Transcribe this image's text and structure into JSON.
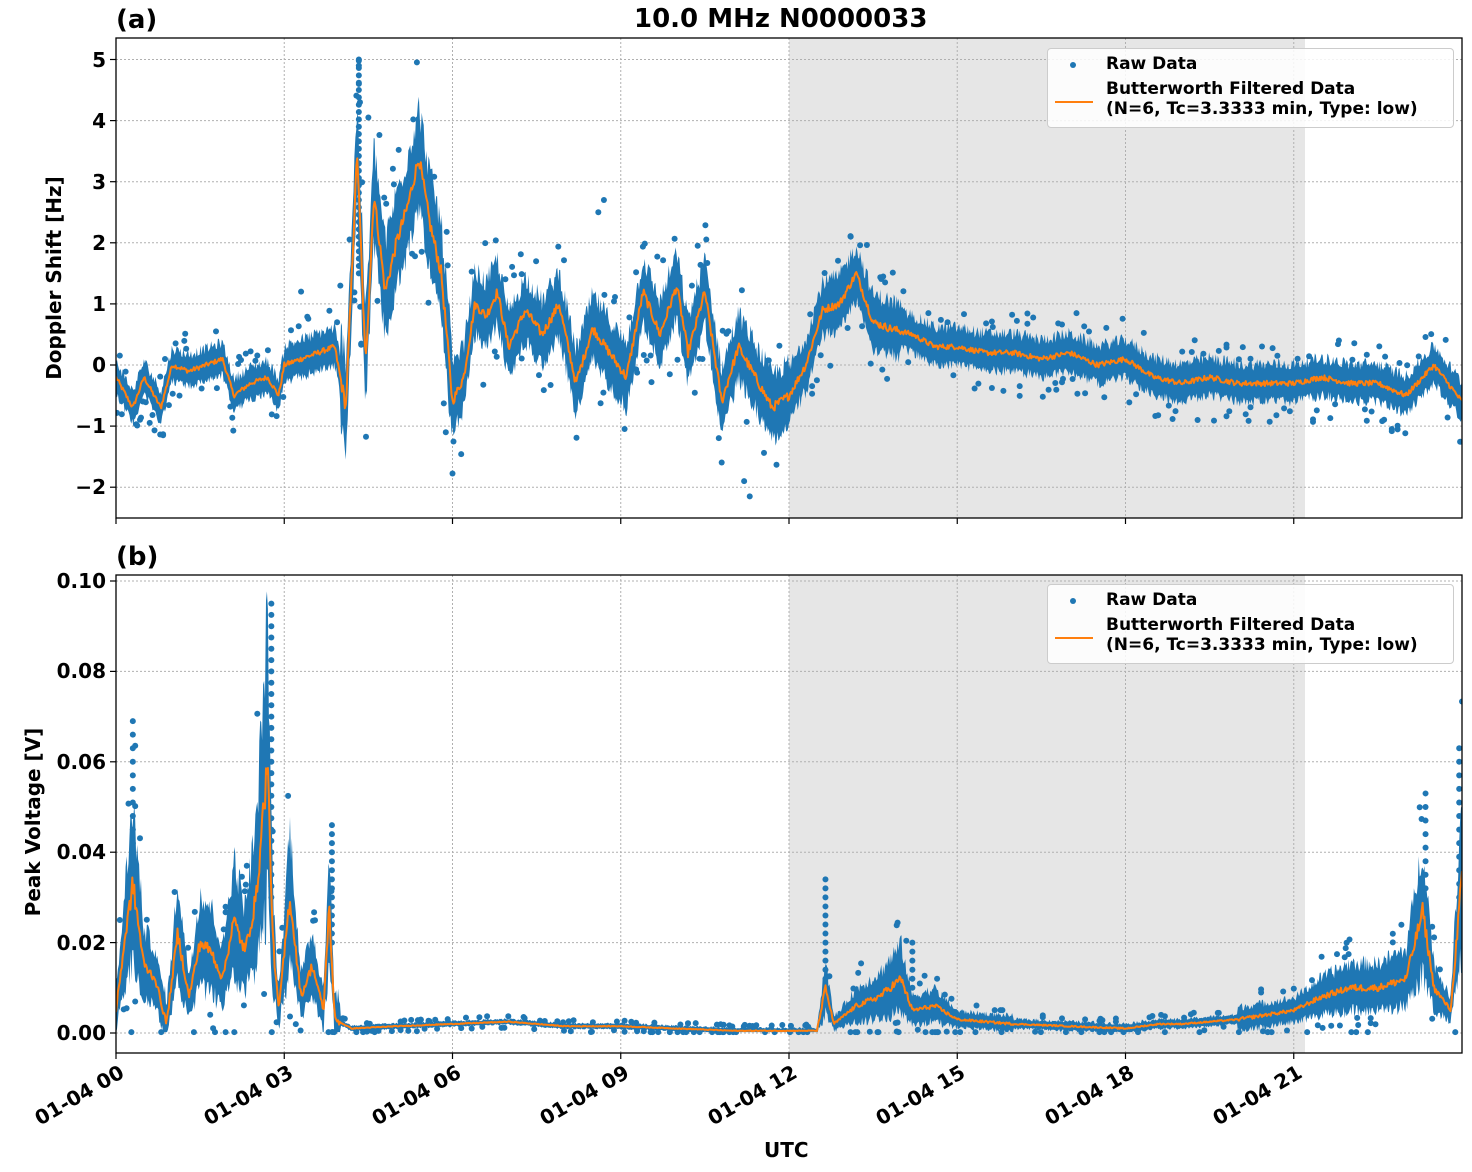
{
  "figure": {
    "title": "10.0 MHz N0000033",
    "xlabel": "UTC",
    "x_tick_labels": [
      "01-04 00",
      "01-04 03",
      "01-04 06",
      "01-04 09",
      "01-04 12",
      "01-04 15",
      "01-04 18",
      "01-04 21"
    ],
    "colors": {
      "raw": "#1f77b4",
      "filtered": "#ff7f0e",
      "shade": "#e6e6e6",
      "grid": "#b0b0b0"
    }
  },
  "panels": {
    "a": {
      "label": "(a)",
      "ylabel": "Doppler Shift [Hz]",
      "y_tick_labels": [
        "5",
        "4",
        "3",
        "2",
        "1",
        "0",
        "−1",
        "−2"
      ],
      "legend": {
        "raw": "Raw Data",
        "filtered_line1": "Butterworth Filtered Data",
        "filtered_line2": "(N=6, Tc=3.3333 min, Type: low)"
      }
    },
    "b": {
      "label": "(b)",
      "ylabel": "Peak Voltage [V]",
      "y_tick_labels": [
        "0.10",
        "0.08",
        "0.06",
        "0.04",
        "0.02",
        "0.00"
      ],
      "legend": {
        "raw": "Raw Data",
        "filtered_line1": "Butterworth Filtered Data",
        "filtered_line2": "(N=6, Tc=3.3333 min, Type: low)"
      }
    }
  },
  "chart_data": [
    {
      "type": "line",
      "title": "10.0 MHz N0000033",
      "panel": "(a)",
      "xlabel": "",
      "ylabel": "Doppler Shift [Hz]",
      "xlim_hours_utc": [
        0,
        24
      ],
      "ylim": [
        -2.5,
        5.35
      ],
      "yticks": [
        -2,
        -1,
        0,
        1,
        2,
        3,
        4,
        5
      ],
      "grid": true,
      "legend_position": "upper right",
      "shaded_region_hours": [
        12.0,
        21.2
      ],
      "series": [
        {
          "name": "Butterworth Filtered Data (N=6, Tc=3.3333 min, Type: low)",
          "style": "line",
          "x_hours": [
            0,
            0.3,
            0.5,
            0.8,
            1.0,
            1.3,
            1.6,
            1.9,
            2.1,
            2.4,
            2.7,
            2.9,
            3.0,
            3.3,
            3.6,
            3.9,
            4.1,
            4.3,
            4.45,
            4.6,
            4.8,
            5.0,
            5.2,
            5.4,
            5.6,
            5.8,
            6.0,
            6.2,
            6.4,
            6.6,
            6.8,
            7.0,
            7.3,
            7.6,
            7.9,
            8.2,
            8.5,
            8.8,
            9.1,
            9.4,
            9.7,
            10.0,
            10.2,
            10.5,
            10.8,
            11.1,
            11.4,
            11.7,
            12.0,
            12.3,
            12.6,
            12.9,
            13.2,
            13.5,
            13.8,
            14.2,
            14.6,
            15.0,
            15.5,
            16.0,
            16.5,
            17.0,
            17.5,
            18.0,
            18.5,
            19.0,
            19.5,
            20.0,
            20.5,
            21.0,
            21.5,
            22.0,
            22.5,
            23.0,
            23.5,
            24.0
          ],
          "values": [
            -0.2,
            -0.7,
            -0.2,
            -0.7,
            0.0,
            -0.1,
            0.0,
            0.1,
            -0.5,
            -0.3,
            -0.2,
            -0.5,
            0.0,
            0.1,
            0.2,
            0.3,
            -0.7,
            3.5,
            0.0,
            2.8,
            1.2,
            2.0,
            2.6,
            3.4,
            2.3,
            1.5,
            -0.6,
            -0.2,
            1.0,
            0.8,
            1.2,
            0.3,
            0.9,
            0.5,
            1.0,
            -0.3,
            0.6,
            0.2,
            -0.2,
            1.2,
            0.5,
            1.3,
            0.2,
            1.2,
            -0.6,
            0.3,
            -0.2,
            -0.7,
            -0.5,
            0.0,
            0.9,
            1.0,
            1.5,
            0.7,
            0.6,
            0.5,
            0.3,
            0.3,
            0.2,
            0.2,
            0.1,
            0.2,
            0.0,
            0.1,
            -0.2,
            -0.3,
            -0.2,
            -0.3,
            -0.3,
            -0.3,
            -0.2,
            -0.3,
            -0.3,
            -0.5,
            0.0,
            -0.6
          ]
        },
        {
          "name": "Raw Data",
          "style": "scatter",
          "description": "Dense scatter around filtered line; spread roughly ±0.5 Hz, larger during 04-11 UTC; maximum ~5.0 Hz near 04:20 UTC; minimum ~-2.15 Hz near 11:25 UTC"
        }
      ]
    },
    {
      "type": "line",
      "panel": "(b)",
      "xlabel": "UTC",
      "ylabel": "Peak Voltage [V]",
      "xlim_hours_utc": [
        0,
        24
      ],
      "ylim": [
        -0.004,
        0.1015
      ],
      "yticks": [
        0.0,
        0.02,
        0.04,
        0.06,
        0.08,
        0.1
      ],
      "grid": true,
      "legend_position": "upper right",
      "shaded_region_hours": [
        12.0,
        21.2
      ],
      "x_tick_labels": [
        "01-04 00",
        "01-04 03",
        "01-04 06",
        "01-04 09",
        "01-04 12",
        "01-04 15",
        "01-04 18",
        "01-04 21"
      ],
      "series": [
        {
          "name": "Butterworth Filtered Data (N=6, Tc=3.3333 min, Type: low)",
          "style": "line",
          "x_hours": [
            0,
            0.15,
            0.3,
            0.5,
            0.7,
            0.9,
            1.1,
            1.3,
            1.5,
            1.7,
            1.9,
            2.1,
            2.3,
            2.5,
            2.7,
            2.8,
            2.9,
            3.1,
            3.3,
            3.5,
            3.7,
            3.8,
            3.9,
            4.2,
            5.0,
            6.0,
            7.0,
            8.0,
            9.0,
            10.0,
            11.0,
            12.0,
            12.5,
            12.65,
            12.8,
            13.2,
            13.6,
            14.0,
            14.2,
            14.6,
            15.0,
            16.0,
            17.0,
            18.0,
            18.6,
            19.0,
            20.0,
            21.0,
            21.5,
            22.0,
            22.5,
            23.0,
            23.3,
            23.5,
            23.8,
            24.0
          ],
          "values": [
            0.005,
            0.02,
            0.033,
            0.015,
            0.012,
            0.002,
            0.022,
            0.008,
            0.02,
            0.018,
            0.012,
            0.025,
            0.018,
            0.03,
            0.06,
            0.02,
            0.005,
            0.03,
            0.008,
            0.015,
            0.005,
            0.028,
            0.003,
            0.001,
            0.0015,
            0.002,
            0.0025,
            0.0015,
            0.0015,
            0.001,
            0.0005,
            0.0005,
            0.0005,
            0.01,
            0.002,
            0.006,
            0.008,
            0.012,
            0.005,
            0.006,
            0.003,
            0.002,
            0.0015,
            0.001,
            0.002,
            0.002,
            0.003,
            0.005,
            0.008,
            0.01,
            0.01,
            0.012,
            0.027,
            0.01,
            0.005,
            0.035
          ]
        },
        {
          "name": "Raw Data",
          "style": "scatter",
          "description": "Dense scatter; large spread 00-04 UTC (max ~0.096 V near 02:45 UTC, ~0.071 near 00:20); near-zero 04-12:30 UTC; spike ~0.035 at 12:40; moderate 13-15 UTC (~0.02); rising again after 20 UTC with peak ~0.064 near 24 UTC"
        }
      ]
    }
  ]
}
